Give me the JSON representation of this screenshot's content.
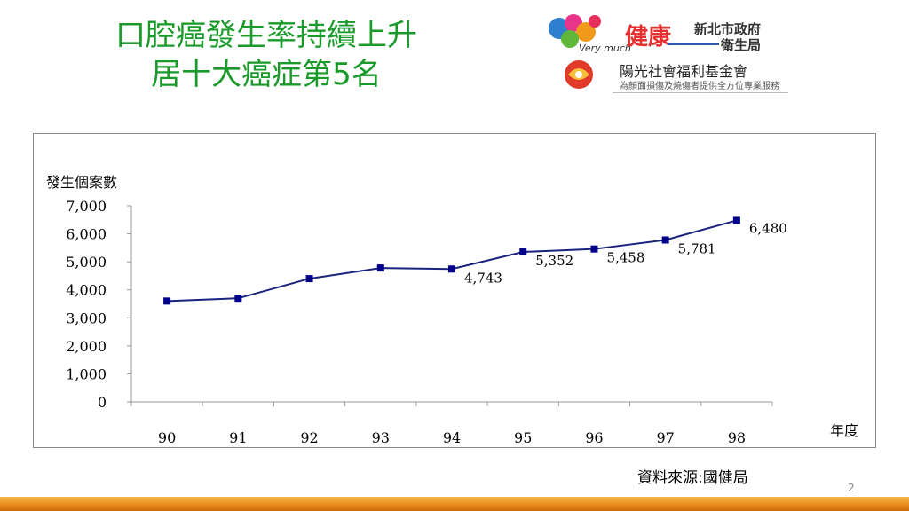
{
  "title": {
    "line1": "口腔癌發生率持續上升",
    "line2": "居十大癌症第5名"
  },
  "logos": {
    "health_bureau": {
      "brand_text": "健康",
      "org_line1": "新北市政府",
      "org_line2": "衛生局",
      "tagline": "Very much"
    },
    "foundation": {
      "name": "陽光社會福利基金會",
      "subtitle": "為顏面損傷及燒傷者提供全方位專業服務"
    }
  },
  "chart_data": {
    "type": "line",
    "x": [
      "90",
      "91",
      "92",
      "93",
      "94",
      "95",
      "96",
      "97",
      "98"
    ],
    "series": [
      {
        "values": [
          3600,
          3700,
          4400,
          4780,
          4743,
          5352,
          5458,
          5781,
          6480
        ]
      }
    ],
    "data_labels": [
      "",
      "",
      "",
      "",
      "4,743",
      "5,352",
      "5,458",
      "5,781",
      "6,480"
    ],
    "ylabel": "發生個案數",
    "xlabel": "年度",
    "ylim": [
      0,
      7000
    ],
    "yticks": [
      "0",
      "1,000",
      "2,000",
      "3,000",
      "4,000",
      "5,000",
      "6,000",
      "7,000"
    ],
    "ytick_values": [
      0,
      1000,
      2000,
      3000,
      4000,
      5000,
      6000,
      7000
    ],
    "line_color": "#1a237e",
    "marker_color": "#00008b",
    "grid": false
  },
  "source": "資料來源:國健局",
  "page_number": "2"
}
